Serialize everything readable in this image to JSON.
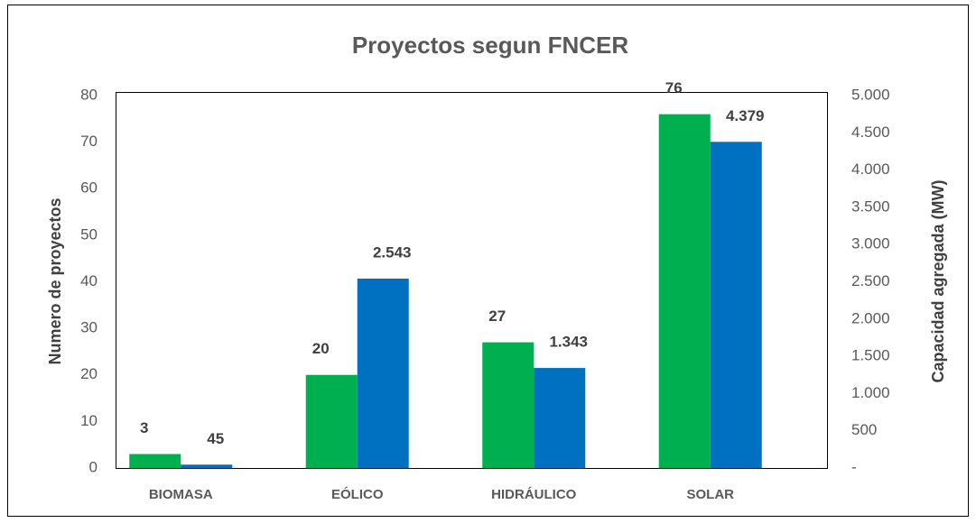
{
  "chart_data": {
    "type": "bar",
    "title": "Proyectos segun FNCER",
    "y_label": "Numero de proyectos",
    "y2_label": "Capacidad agregada (MW)",
    "categories": [
      "BIOMASA",
      "EÓLICO",
      "HIDRÁULICO",
      "SOLAR"
    ],
    "series": [
      {
        "color": "#00b050",
        "values": [
          3,
          20,
          27,
          76
        ]
      },
      {
        "color": "#0070c0",
        "axis": "y2",
        "values": [
          45,
          2543,
          1343,
          4379
        ],
        "value_labels": [
          "45",
          "2.543",
          "1.343",
          "4.379"
        ]
      }
    ],
    "ylim": [
      0,
      80
    ],
    "yticks": [
      0,
      10,
      20,
      30,
      40,
      50,
      60,
      70,
      80
    ],
    "y2lim": [
      0,
      5000
    ],
    "y2ticks": [
      {
        "value": 0,
        "label": "-"
      },
      500,
      {
        "value": 1000,
        "label": "1.000"
      },
      {
        "value": 1500,
        "label": "1.500"
      },
      {
        "value": 2000,
        "label": "2.000"
      },
      {
        "value": 2500,
        "label": "2.500"
      },
      {
        "value": 3000,
        "label": "3.000"
      },
      {
        "value": 3500,
        "label": "3.500"
      },
      {
        "value": 4000,
        "label": "4.000"
      },
      {
        "value": 4500,
        "label": "4.500"
      },
      {
        "value": 5000,
        "label": "5.000"
      }
    ],
    "grid": false
  }
}
